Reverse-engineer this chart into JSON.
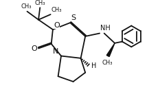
{
  "bg_color": "#ffffff",
  "line_color": "#111111",
  "lw": 1.3,
  "font_size": 7.0,
  "fig_w": 2.33,
  "fig_h": 1.53,
  "dpi": 100,
  "xlim": [
    0,
    10
  ],
  "ylim": [
    0,
    6.5
  ]
}
